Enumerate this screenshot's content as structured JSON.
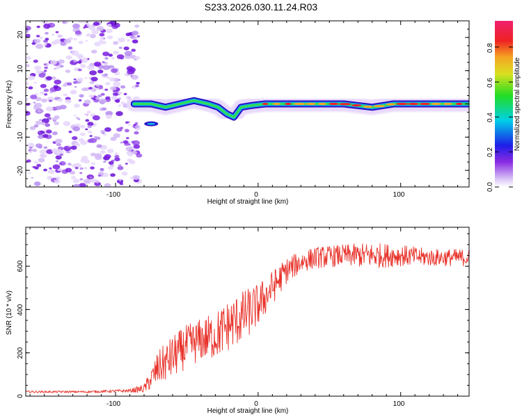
{
  "title": "S233.2026.030.11.24.R03",
  "colors": {
    "snr_line": "#e8322a",
    "background": "#ffffff",
    "axis": "#000000"
  },
  "chart_data": [
    {
      "type": "heatmap",
      "xlabel": "Height of straight line (km)",
      "ylabel": "Frequency (Hz)",
      "xlim": [
        -163,
        148
      ],
      "ylim": [
        -25,
        25
      ],
      "x_ticks": [
        -100,
        0,
        100
      ],
      "x_tick_labels": [
        "-100",
        "0",
        "100"
      ],
      "y_ticks": [
        -20,
        -10,
        0,
        10,
        20
      ],
      "y_tick_labels": [
        "-20",
        "-10",
        "0",
        "10",
        "20"
      ],
      "noise_region_x": [
        -163,
        -87
      ],
      "signal_track": {
        "x": [
          -87,
          -75,
          -65,
          -55,
          -45,
          -35,
          -28,
          -22,
          -17,
          -12,
          -5,
          5,
          20,
          40,
          60,
          80,
          95,
          110,
          130,
          148
        ],
        "freq": [
          0,
          0,
          -1,
          0,
          1,
          0,
          -1,
          -3,
          -4,
          -1,
          -0.5,
          0,
          0,
          0,
          0,
          -1,
          0,
          0,
          0,
          0
        ]
      },
      "colorbar": {
        "label": "Normalized spectral amplitude",
        "range": [
          0,
          0.95
        ],
        "ticks": [
          0.0,
          0.2,
          0.4,
          0.6,
          0.8
        ],
        "tick_labels": [
          "0.0",
          "0.2",
          "0.4",
          "0.6",
          "0.8"
        ]
      }
    },
    {
      "type": "line",
      "xlabel": "Height of straight line (km)",
      "ylabel": "SNR (10 * v/v)",
      "xlim": [
        -163,
        148
      ],
      "ylim": [
        0,
        780
      ],
      "x_ticks": [
        -100,
        0,
        100
      ],
      "x_tick_labels": [
        "-100",
        "0",
        "100"
      ],
      "y_ticks": [
        0,
        200,
        400,
        600
      ],
      "y_tick_labels": [
        "0",
        "200",
        "400",
        "600"
      ],
      "series": [
        {
          "name": "SNR",
          "x": [
            -163,
            -120,
            -90,
            -80,
            -75,
            -70,
            -60,
            -50,
            -40,
            -30,
            -20,
            -10,
            0,
            10,
            20,
            30,
            40,
            60,
            80,
            100,
            120,
            148
          ],
          "values": [
            20,
            20,
            25,
            35,
            80,
            130,
            180,
            230,
            260,
            280,
            330,
            370,
            420,
            500,
            580,
            620,
            640,
            650,
            650,
            650,
            640,
            640
          ],
          "amplitude": [
            5,
            5,
            8,
            20,
            50,
            80,
            100,
            100,
            100,
            110,
            120,
            120,
            100,
            80,
            60,
            50,
            50,
            50,
            60,
            50,
            40,
            40
          ]
        }
      ]
    }
  ]
}
